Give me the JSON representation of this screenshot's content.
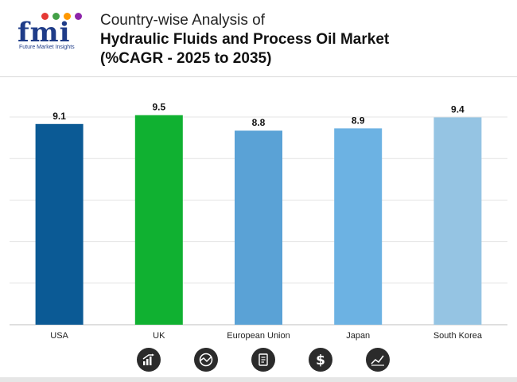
{
  "header": {
    "logo_text": "fmi",
    "logo_tagline": "Future Market Insights",
    "title_line1": "Country-wise Analysis of",
    "title_line2": "Hydraulic Fluids and Process Oil Market",
    "title_line3": "(%CAGR - 2025 to 2035)"
  },
  "colors": {
    "USA": "#0b5a95",
    "UK": "#10b131",
    "European Union": "#5aa2d6",
    "Japan": "#6cb2e3",
    "South Korea": "#95c4e3"
  },
  "chart_data": {
    "type": "bar",
    "categories": [
      "USA",
      "UK",
      "European Union",
      "Japan",
      "South Korea"
    ],
    "values": [
      9.1,
      9.5,
      8.8,
      8.9,
      9.4
    ],
    "data_labels": [
      "9.1",
      "9.5",
      "8.8",
      "8.9",
      "9.4"
    ],
    "title": "Country-wise Analysis of Hydraulic Fluids and Process Oil Market (%CAGR - 2025 to 2035)",
    "xlabel": "",
    "ylabel": "",
    "ylim": [
      0,
      10.5
    ],
    "grid": true,
    "legend": "none"
  },
  "footer_icons": [
    "bar-growth-icon",
    "chart-circle-icon",
    "document-icon",
    "dollar-icon",
    "trend-line-icon"
  ]
}
